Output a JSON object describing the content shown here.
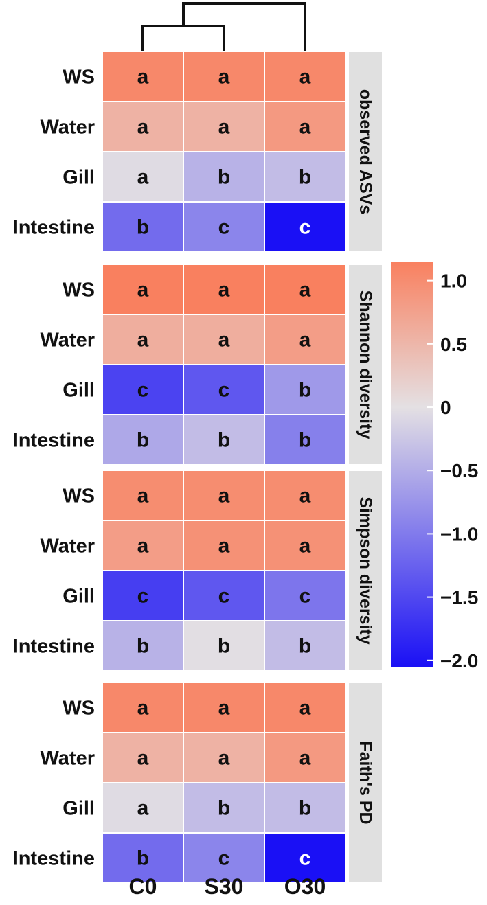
{
  "chart_data": {
    "type": "heatmap",
    "columns": [
      "C0",
      "S30",
      "O30"
    ],
    "rows": [
      "WS",
      "Water",
      "Gill",
      "Intestine"
    ],
    "panels": [
      {
        "name": "observed ASVs",
        "values": [
          [
            1.05,
            1.05,
            1.05
          ],
          [
            0.55,
            0.55,
            0.85
          ],
          [
            -0.05,
            -0.45,
            -0.35
          ],
          [
            -1.15,
            -0.9,
            -2.05
          ]
        ],
        "letters": [
          [
            "a",
            "a",
            "a"
          ],
          [
            "a",
            "a",
            "a"
          ],
          [
            "a",
            "b",
            "b"
          ],
          [
            "b",
            "c",
            "c"
          ]
        ]
      },
      {
        "name": "Shannon diversity",
        "values": [
          [
            1.15,
            1.15,
            1.15
          ],
          [
            0.6,
            0.6,
            0.8
          ],
          [
            -1.55,
            -1.35,
            -0.7
          ],
          [
            -0.55,
            -0.35,
            -0.95
          ]
        ],
        "letters": [
          [
            "a",
            "a",
            "a"
          ],
          [
            "a",
            "a",
            "a"
          ],
          [
            "c",
            "c",
            "b"
          ],
          [
            "b",
            "b",
            "b"
          ]
        ]
      },
      {
        "name": "Simpson diversity",
        "values": [
          [
            1.0,
            1.0,
            1.0
          ],
          [
            0.8,
            0.95,
            0.95
          ],
          [
            -1.6,
            -1.35,
            -1.05
          ],
          [
            -0.45,
            -0.02,
            -0.35
          ]
        ],
        "letters": [
          [
            "a",
            "a",
            "a"
          ],
          [
            "a",
            "a",
            "a"
          ],
          [
            "c",
            "c",
            "c"
          ],
          [
            "b",
            "b",
            "b"
          ]
        ]
      },
      {
        "name": "Faith's PD",
        "values": [
          [
            1.05,
            1.05,
            1.05
          ],
          [
            0.55,
            0.55,
            0.85
          ],
          [
            -0.05,
            -0.35,
            -0.35
          ],
          [
            -1.15,
            -0.9,
            -2.05
          ]
        ],
        "letters": [
          [
            "a",
            "a",
            "a"
          ],
          [
            "a",
            "a",
            "a"
          ],
          [
            "a",
            "b",
            "b"
          ],
          [
            "b",
            "c",
            "c"
          ]
        ]
      }
    ],
    "colorbar": {
      "ticks": [
        1.0,
        0.5,
        0,
        -0.5,
        -1.0,
        -1.5,
        -2.0
      ],
      "tick_labels": [
        "1.0",
        "0.5",
        "0",
        "−0.5",
        "−1.0",
        "−1.5",
        "−2.0"
      ],
      "range": [
        -2.05,
        1.15
      ],
      "colors": {
        "high": "#f9805f",
        "mid": "#e4e0e3",
        "low": "#1a10f5"
      }
    },
    "dendrogram": {
      "clusters": [
        [
          "C0",
          "S30"
        ],
        "O30"
      ]
    },
    "panel_strip_color": "#e0e0e0",
    "letter_colors": {
      "default": "#111111",
      "on_dark": "#ffffff"
    }
  }
}
